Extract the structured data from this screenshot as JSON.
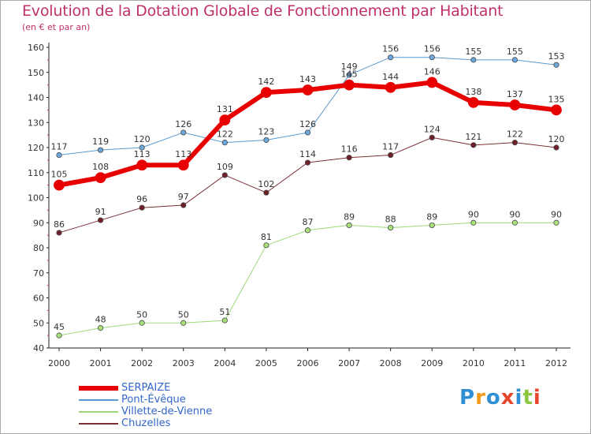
{
  "title": "Evolution de la Dotation Globale de Fonctionnement par Habitant",
  "subtitle": "(en € et par an)",
  "logo": {
    "text": "Proxiti",
    "letters": [
      {
        "ch": "P",
        "color": "#2e8fd4"
      },
      {
        "ch": "r",
        "color": "#f29a1e"
      },
      {
        "ch": "o",
        "color": "#2e8fd4"
      },
      {
        "ch": "x",
        "color": "#e8462c"
      },
      {
        "ch": "i",
        "color": "#2e8fd4"
      },
      {
        "ch": "t",
        "color": "#8cc63f"
      },
      {
        "ch": "i",
        "color": "#e8462c"
      }
    ]
  },
  "chart_data": {
    "type": "line",
    "title": "Evolution de la Dotation Globale de Fonctionnement par Habitant",
    "subtitle": "(en € et par an)",
    "xlabel": "",
    "ylabel": "",
    "ylim": [
      40,
      160
    ],
    "yticks": [
      40,
      50,
      60,
      70,
      80,
      90,
      100,
      110,
      120,
      130,
      140,
      150,
      160
    ],
    "grid": false,
    "legend_position": "bottom-left",
    "categories": [
      "2000",
      "2001",
      "2002",
      "2003",
      "2004",
      "2005",
      "2006",
      "2007",
      "2008",
      "2009",
      "2010",
      "2011",
      "2012"
    ],
    "series": [
      {
        "name": "Pont-Évêque",
        "color": "#5a9ad0",
        "marker_fill": "#6aa8dd",
        "line_width": 1,
        "marker_radius": 3.2,
        "values": [
          117,
          119,
          120,
          126,
          122,
          123,
          126,
          149,
          156,
          156,
          155,
          155,
          153
        ],
        "labels": [
          "117",
          "119",
          "120",
          "126",
          "122",
          "123",
          "126",
          "149",
          "156",
          "156",
          "155",
          "155",
          "153"
        ]
      },
      {
        "name": "Villette-de-Vienne",
        "color": "#9cd878",
        "marker_fill": "#a8e07a",
        "line_width": 1,
        "marker_radius": 3.2,
        "values": [
          45,
          48,
          50,
          50,
          51,
          81,
          87,
          89,
          88,
          89,
          90,
          90,
          90
        ],
        "labels": [
          "45",
          "48",
          "50",
          "50",
          "51",
          "81",
          "87",
          "89",
          "88",
          "89",
          "90",
          "90",
          "90"
        ]
      },
      {
        "name": "Chuzelles",
        "color": "#7a2f36",
        "marker_fill": "#6e1f28",
        "line_width": 1,
        "marker_radius": 3.2,
        "values": [
          86,
          91,
          96,
          97,
          109,
          102,
          114,
          116,
          117,
          124,
          121,
          122,
          120
        ],
        "labels": [
          "86",
          "91",
          "96",
          "97",
          "109",
          "102",
          "114",
          "116",
          "117",
          "124",
          "121",
          "122",
          "120"
        ]
      },
      {
        "name": "SERPAIZE",
        "color": "#e80000",
        "marker_fill": "#e80000",
        "line_width": 6,
        "marker_radius": 6.5,
        "values": [
          105,
          108,
          113,
          113,
          131,
          142,
          143,
          145,
          144,
          146,
          138,
          137,
          135
        ],
        "labels": [
          "105",
          "108",
          "113",
          "113",
          "131",
          "142",
          "143",
          "145",
          "144",
          "146",
          "138",
          "137",
          "135"
        ]
      }
    ]
  },
  "legend": [
    {
      "name": "SERPAIZE",
      "color": "#e80000",
      "weight": 6
    },
    {
      "name": "Pont-Évêque",
      "color": "#5a9ad0",
      "weight": 1
    },
    {
      "name": "Villette-de-Vienne",
      "color": "#9cd878",
      "weight": 1
    },
    {
      "name": "Chuzelles",
      "color": "#7a2f36",
      "weight": 1
    }
  ]
}
